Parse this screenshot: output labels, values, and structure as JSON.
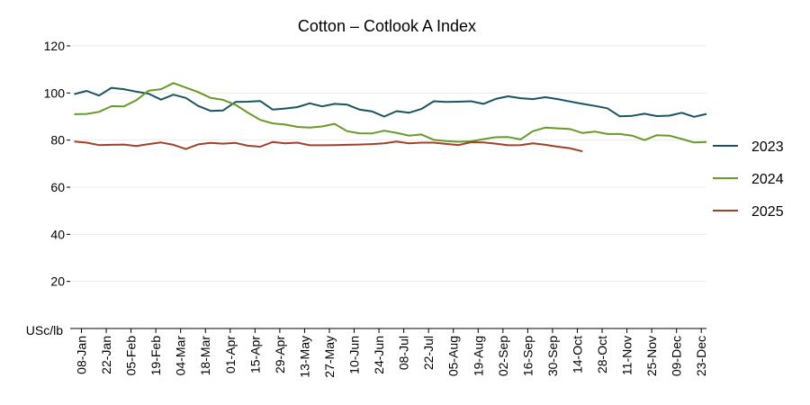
{
  "chart_data": {
    "type": "line",
    "title": "Cotton – Cotlook A Index",
    "ylabel": "USc/lb",
    "xlabel": "",
    "ylim": [
      0,
      120
    ],
    "y_ticks": [
      20,
      40,
      60,
      80,
      100,
      120
    ],
    "x_tick_labels": [
      "08-Jan",
      "22-Jan",
      "05-Feb",
      "19-Feb",
      "04-Mar",
      "18-Mar",
      "01-Apr",
      "15-Apr",
      "29-Apr",
      "13-May",
      "27-May",
      "10-Jun",
      "24-Jun",
      "08-Jul",
      "22-Jul",
      "05-Aug",
      "19-Aug",
      "02-Sep",
      "16-Sep",
      "30-Sep",
      "14-Oct",
      "28-Oct",
      "11-Nov",
      "25-Nov",
      "09-Dec",
      "23-Dec"
    ],
    "grid": true,
    "legend": "right",
    "series": [
      {
        "name": "2023",
        "color": "#1a5461",
        "values": [
          99.5,
          100.9,
          98.9,
          102.2,
          101.6,
          100.6,
          99.7,
          97.2,
          99.3,
          97.9,
          94.5,
          92.4,
          92.6,
          96.2,
          96.3,
          96.6,
          93.0,
          93.4,
          94.0,
          95.6,
          94.3,
          95.4,
          95.1,
          93.0,
          92.2,
          90.0,
          92.3,
          91.6,
          93.2,
          96.5,
          96.2,
          96.3,
          96.5,
          95.4,
          97.5,
          98.6,
          97.8,
          97.4,
          98.2,
          97.4,
          96.4,
          95.4,
          94.5,
          93.5,
          90.1,
          90.3,
          91.2,
          90.2,
          90.4,
          91.6,
          89.9,
          91.1
        ]
      },
      {
        "name": "2024",
        "color": "#669a29",
        "values": [
          91.0,
          91.1,
          92.0,
          94.4,
          94.3,
          96.9,
          101.0,
          101.6,
          104.2,
          102.3,
          100.4,
          97.9,
          97.1,
          95.0,
          91.7,
          88.6,
          87.1,
          86.6,
          85.6,
          85.3,
          85.8,
          86.9,
          83.8,
          82.9,
          82.8,
          84.0,
          83.1,
          81.9,
          82.4,
          80.1,
          79.6,
          79.3,
          79.5,
          80.4,
          81.2,
          81.3,
          80.3,
          83.8,
          85.3,
          85.0,
          84.7,
          83.0,
          83.6,
          82.6,
          82.6,
          81.9,
          80.0,
          82.1,
          81.9,
          80.5,
          79.0,
          79.2
        ]
      },
      {
        "name": "2025",
        "color": "#a0412b",
        "values": [
          79.4,
          78.9,
          77.9,
          78.0,
          78.1,
          77.5,
          78.3,
          79.0,
          78.0,
          76.2,
          78.2,
          78.8,
          78.5,
          78.8,
          77.6,
          77.2,
          79.2,
          78.6,
          78.9,
          77.8,
          77.8,
          77.9,
          78.0,
          78.1,
          78.3,
          78.6,
          79.4,
          78.6,
          78.9,
          78.9,
          78.4,
          77.9,
          79.1,
          79.0,
          78.5,
          77.8,
          77.9,
          78.6,
          78.0,
          77.2,
          76.5,
          75.2
        ]
      }
    ]
  }
}
